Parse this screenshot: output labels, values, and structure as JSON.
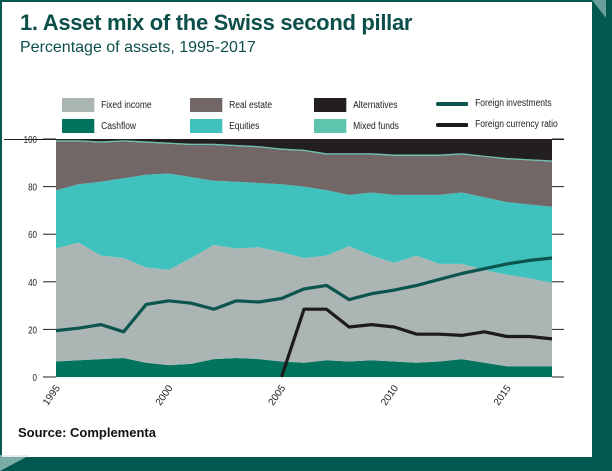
{
  "header": {
    "title": "1. Asset mix of the Swiss second pillar",
    "subtitle": "Percentage of assets, 1995-2017"
  },
  "footer": {
    "source": "Source: Complementa"
  },
  "colors": {
    "cashflow": "#02735d",
    "fixed_income": "#abb5b3",
    "equities": "#3fc1bd",
    "real_estate": "#736667",
    "mixed_funds": "#5fc4ad",
    "alternatives": "#231f20",
    "foreign_investments": "#0b554e",
    "foreign_currency_ratio": "#1d1b1c",
    "frame": "#02574f"
  },
  "legend": [
    {
      "label": "Fixed income",
      "key": "fixed_income",
      "kind": "area"
    },
    {
      "label": "Real estate",
      "key": "real_estate",
      "kind": "area"
    },
    {
      "label": "Alternatives",
      "key": "alternatives",
      "kind": "area"
    },
    {
      "label": "Foreign  investments",
      "key": "foreign_investments",
      "kind": "line"
    },
    {
      "label": "Cashflow",
      "key": "cashflow",
      "kind": "area"
    },
    {
      "label": "Equities",
      "key": "equities",
      "kind": "area"
    },
    {
      "label": "Mixed funds",
      "key": "mixed_funds",
      "kind": "area"
    },
    {
      "label": "Foreign currency ratio",
      "key": "foreign_currency_ratio",
      "kind": "line"
    }
  ],
  "chart_data": {
    "type": "area",
    "stacked": true,
    "title": "1. Asset mix of the Swiss second pillar",
    "subtitle": "Percentage of assets, 1995-2017",
    "xlabel": "",
    "ylabel": "",
    "x": [
      1995,
      1996,
      1997,
      1998,
      1999,
      2000,
      2001,
      2002,
      2003,
      2004,
      2005,
      2006,
      2007,
      2008,
      2009,
      2010,
      2011,
      2012,
      2013,
      2014,
      2015,
      2016,
      2017
    ],
    "xlim": [
      1995,
      2017
    ],
    "ylim": [
      0,
      100
    ],
    "yticks": [
      0,
      20,
      40,
      60,
      80,
      100
    ],
    "xticks": [
      1995,
      2000,
      2005,
      2010,
      2015
    ],
    "grid": false,
    "legend_position": "top",
    "series": [
      {
        "name": "Cashflow",
        "key": "cashflow",
        "values": [
          6.5,
          7,
          7.5,
          8,
          6,
          5,
          5.5,
          7.5,
          8,
          7.5,
          6.5,
          6,
          7,
          6.5,
          7,
          6.5,
          6,
          6.5,
          7.5,
          6,
          4.5,
          4.5,
          4.5
        ]
      },
      {
        "name": "Fixed income",
        "key": "fixed_income",
        "values": [
          47.5,
          49.5,
          43.5,
          42,
          40,
          40,
          44.5,
          48,
          46,
          47,
          46,
          44,
          44,
          48.5,
          44,
          41.5,
          45,
          41,
          40,
          39,
          38.5,
          37,
          35
        ]
      },
      {
        "name": "Equities",
        "key": "equities",
        "values": [
          24.5,
          24.5,
          31,
          33.5,
          39,
          40.5,
          34,
          27,
          28,
          27,
          28.5,
          30,
          27.5,
          21.5,
          26.5,
          28.5,
          25.5,
          29,
          30,
          30.5,
          30.5,
          31,
          32
        ]
      },
      {
        "name": "Real estate",
        "key": "real_estate",
        "values": [
          20.5,
          18,
          16.5,
          15.5,
          13.5,
          12.5,
          13.5,
          15,
          15,
          15,
          14.5,
          15,
          15,
          17,
          16,
          16.5,
          16.5,
          16.5,
          16,
          17,
          18,
          18.5,
          19
        ]
      },
      {
        "name": "Mixed funds",
        "key": "mixed_funds",
        "values": [
          0.5,
          0.5,
          0.5,
          0.5,
          0.5,
          0.5,
          0.5,
          0.5,
          0.5,
          0.5,
          0.5,
          0.5,
          0.5,
          0.5,
          0.5,
          0.5,
          0.5,
          0.5,
          0.5,
          0.5,
          0.5,
          0.5,
          0.5
        ]
      },
      {
        "name": "Alternatives",
        "key": "alternatives",
        "values": [
          0.5,
          0.5,
          1,
          0.5,
          1,
          1.5,
          2,
          2,
          2.5,
          3,
          4,
          4.5,
          6,
          6,
          6,
          6.5,
          6.5,
          6.5,
          6,
          7,
          8,
          8.5,
          9
        ]
      }
    ],
    "lines": [
      {
        "name": "Foreign  investments",
        "key": "foreign_investments",
        "values": [
          19.5,
          20.5,
          22,
          19,
          30.5,
          32,
          31,
          28.5,
          32,
          31.5,
          33,
          37,
          38.5,
          32.5,
          35,
          36.5,
          38.5,
          41,
          43.5,
          45.5,
          47.5,
          49,
          50
        ]
      },
      {
        "name": "Foreign currency ratio",
        "key": "foreign_currency_ratio",
        "values": [
          null,
          null,
          null,
          null,
          null,
          null,
          null,
          null,
          null,
          null,
          0,
          28.5,
          28.5,
          21,
          22,
          21,
          18,
          18,
          17.5,
          19,
          17,
          17,
          16
        ]
      }
    ]
  }
}
